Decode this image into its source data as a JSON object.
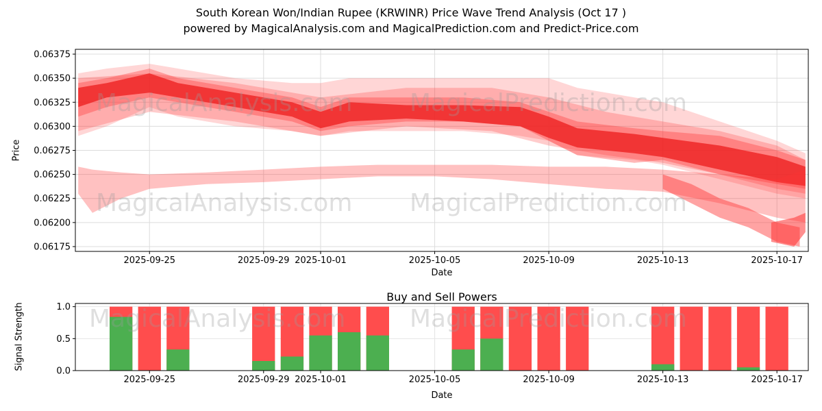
{
  "title_line1": "South Korean Won/Indian Rupee  (KRWINR) Price Wave Trend Analysis (Oct 17 )",
  "title_line2": "powered by MagicalAnalysis.com and MagicalPrediction.com and Predict-Price.com",
  "watermarks": {
    "left": "MagicalAnalysis.com",
    "right": "MagicalPrediction.com",
    "color": "#9a9a9a",
    "opacity": 0.32
  },
  "chart_data": [
    {
      "type": "area",
      "name": "price-wave-trend",
      "ylabel": "Price",
      "xlabel": "Date",
      "base_date": "2025-09-22",
      "xlim_days": [
        0.4,
        26.1
      ],
      "ylim": [
        0.0617,
        0.0638
      ],
      "yticks": [
        0.06175,
        0.062,
        0.06225,
        0.0625,
        0.06275,
        0.063,
        0.06325,
        0.0635,
        0.06375
      ],
      "ytick_decimals": 5,
      "xticks": [
        "2025-09-25",
        "2025-09-29",
        "2025-10-01",
        "2025-10-05",
        "2025-10-09",
        "2025-10-13",
        "2025-10-17"
      ],
      "grid": true,
      "band_color": "#ff3333",
      "bands": [
        {
          "name": "outer-upper-band",
          "opacity": 0.2,
          "points": [
            [
              0.5,
              0.0629,
              0.06355
            ],
            [
              1.5,
              0.063,
              0.0636
            ],
            [
              3.0,
              0.0632,
              0.06365
            ],
            [
              4.0,
              0.0631,
              0.0636
            ],
            [
              6.0,
              0.063,
              0.0635
            ],
            [
              8.0,
              0.06295,
              0.06345
            ],
            [
              9.0,
              0.0629,
              0.06345
            ],
            [
              10.0,
              0.06295,
              0.0635
            ],
            [
              12.0,
              0.06295,
              0.0635
            ],
            [
              14.0,
              0.06295,
              0.0635
            ],
            [
              16.0,
              0.0629,
              0.0635
            ],
            [
              17.0,
              0.06285,
              0.0635
            ],
            [
              18.0,
              0.0627,
              0.0634
            ],
            [
              20.0,
              0.06265,
              0.0633
            ],
            [
              21.0,
              0.0626,
              0.06325
            ],
            [
              23.0,
              0.06245,
              0.06305
            ],
            [
              25.0,
              0.0623,
              0.06285
            ],
            [
              26.0,
              0.06225,
              0.06272
            ]
          ]
        },
        {
          "name": "mid-upper-texture-band",
          "opacity": 0.25,
          "points": [
            [
              0.5,
              0.06295,
              0.0635
            ],
            [
              3.0,
              0.06315,
              0.06355
            ],
            [
              6.0,
              0.06305,
              0.06345
            ],
            [
              9.0,
              0.0629,
              0.0633
            ],
            [
              12.0,
              0.063,
              0.0634
            ],
            [
              15.0,
              0.06295,
              0.0634
            ],
            [
              17.0,
              0.0628,
              0.0633
            ],
            [
              19.0,
              0.0627,
              0.06315
            ],
            [
              21.0,
              0.06262,
              0.06305
            ],
            [
              23.0,
              0.0625,
              0.06295
            ],
            [
              25.0,
              0.06235,
              0.0628
            ],
            [
              26.0,
              0.0623,
              0.06265
            ]
          ]
        },
        {
          "name": "mid-upper-band",
          "opacity": 0.35,
          "points": [
            [
              0.5,
              0.0631,
              0.06345
            ],
            [
              1.5,
              0.0632,
              0.0635
            ],
            [
              3.0,
              0.0633,
              0.0636
            ],
            [
              4.0,
              0.06325,
              0.0635
            ],
            [
              6.0,
              0.06315,
              0.0634
            ],
            [
              8.0,
              0.06305,
              0.0633
            ],
            [
              9.0,
              0.06295,
              0.0632
            ],
            [
              10.0,
              0.063,
              0.0633
            ],
            [
              12.0,
              0.06305,
              0.0633
            ],
            [
              14.0,
              0.06305,
              0.0633
            ],
            [
              16.0,
              0.063,
              0.06325
            ],
            [
              17.0,
              0.06285,
              0.06315
            ],
            [
              18.0,
              0.0627,
              0.06305
            ],
            [
              20.0,
              0.06262,
              0.06298
            ],
            [
              21.0,
              0.06265,
              0.06295
            ],
            [
              23.0,
              0.0625,
              0.0629
            ],
            [
              25.0,
              0.0624,
              0.06275
            ],
            [
              26.0,
              0.06235,
              0.06265
            ]
          ]
        },
        {
          "name": "core-trend-band",
          "opacity": 0.8,
          "color": "#ee2222",
          "points": [
            [
              0.5,
              0.0632,
              0.0634
            ],
            [
              1.5,
              0.0633,
              0.06345
            ],
            [
              3.0,
              0.06335,
              0.06355
            ],
            [
              4.0,
              0.0633,
              0.06345
            ],
            [
              6.0,
              0.0632,
              0.06335
            ],
            [
              8.0,
              0.0631,
              0.06325
            ],
            [
              9.0,
              0.06298,
              0.06315
            ],
            [
              10.0,
              0.06305,
              0.06325
            ],
            [
              12.0,
              0.06308,
              0.06322
            ],
            [
              14.0,
              0.06305,
              0.06322
            ],
            [
              16.0,
              0.063,
              0.0632
            ],
            [
              17.0,
              0.06288,
              0.0631
            ],
            [
              18.0,
              0.06278,
              0.06298
            ],
            [
              20.0,
              0.06272,
              0.06292
            ],
            [
              21.0,
              0.06268,
              0.06288
            ],
            [
              23.0,
              0.06255,
              0.0628
            ],
            [
              25.0,
              0.06242,
              0.06268
            ],
            [
              26.0,
              0.06238,
              0.06258
            ]
          ]
        },
        {
          "name": "lower-band",
          "opacity": 0.3,
          "points": [
            [
              0.5,
              0.0623,
              0.06258
            ],
            [
              1.0,
              0.0621,
              0.06255
            ],
            [
              2.0,
              0.06225,
              0.06252
            ],
            [
              3.0,
              0.06235,
              0.0625
            ],
            [
              5.0,
              0.0624,
              0.06252
            ],
            [
              7.0,
              0.06242,
              0.06255
            ],
            [
              9.0,
              0.06245,
              0.06258
            ],
            [
              11.0,
              0.06248,
              0.0626
            ],
            [
              13.0,
              0.06248,
              0.0626
            ],
            [
              15.0,
              0.06245,
              0.0626
            ],
            [
              17.0,
              0.0624,
              0.06258
            ],
            [
              19.0,
              0.06235,
              0.06258
            ],
            [
              21.0,
              0.06232,
              0.06255
            ],
            [
              23.0,
              0.0622,
              0.0625
            ],
            [
              25.0,
              0.06205,
              0.06245
            ],
            [
              26.0,
              0.062,
              0.06255
            ]
          ]
        },
        {
          "name": "steep-decline-band",
          "opacity": 0.45,
          "points": [
            [
              21.0,
              0.06235,
              0.0625
            ],
            [
              22.0,
              0.0622,
              0.0624
            ],
            [
              23.0,
              0.06205,
              0.06225
            ],
            [
              24.0,
              0.06195,
              0.06215
            ],
            [
              25.0,
              0.0618,
              0.062
            ],
            [
              25.8,
              0.06175,
              0.06195
            ]
          ]
        },
        {
          "name": "end-blob-band",
          "opacity": 0.55,
          "points": [
            [
              24.8,
              0.0618,
              0.062
            ],
            [
              25.6,
              0.06175,
              0.06205
            ],
            [
              26.0,
              0.0619,
              0.0621
            ]
          ]
        }
      ]
    },
    {
      "type": "bar",
      "name": "buy-sell-powers",
      "title": "Buy and Sell Powers",
      "ylabel": "Signal Strength",
      "xlabel": "Date",
      "ylim": [
        0,
        1.05
      ],
      "yticks": [
        0.0,
        0.5,
        1.0
      ],
      "ytick_decimals": 1,
      "xticks": [
        "2025-09-25",
        "2025-09-29",
        "2025-10-01",
        "2025-10-05",
        "2025-10-09",
        "2025-10-13",
        "2025-10-17"
      ],
      "grid": true,
      "bar_width_days": 0.8,
      "sell_color": "#ff4d4d",
      "buy_color": "#4caf50",
      "bars": [
        {
          "date": "2025-09-24",
          "sell": 1.0,
          "buy": 0.84
        },
        {
          "date": "2025-09-25",
          "sell": 1.0,
          "buy": 0.0
        },
        {
          "date": "2025-09-26",
          "sell": 1.0,
          "buy": 0.33
        },
        {
          "date": "2025-09-29",
          "sell": 1.0,
          "buy": 0.15
        },
        {
          "date": "2025-09-30",
          "sell": 1.0,
          "buy": 0.22
        },
        {
          "date": "2025-10-01",
          "sell": 1.0,
          "buy": 0.55
        },
        {
          "date": "2025-10-02",
          "sell": 1.0,
          "buy": 0.6
        },
        {
          "date": "2025-10-03",
          "sell": 1.0,
          "buy": 0.55
        },
        {
          "date": "2025-10-06",
          "sell": 1.0,
          "buy": 0.33
        },
        {
          "date": "2025-10-07",
          "sell": 1.0,
          "buy": 0.5
        },
        {
          "date": "2025-10-08",
          "sell": 1.0,
          "buy": 0.0
        },
        {
          "date": "2025-10-09",
          "sell": 1.0,
          "buy": 0.0
        },
        {
          "date": "2025-10-10",
          "sell": 1.0,
          "buy": 0.0
        },
        {
          "date": "2025-10-13",
          "sell": 1.0,
          "buy": 0.1
        },
        {
          "date": "2025-10-14",
          "sell": 1.0,
          "buy": 0.0
        },
        {
          "date": "2025-10-15",
          "sell": 1.0,
          "buy": 0.0
        },
        {
          "date": "2025-10-16",
          "sell": 1.0,
          "buy": 0.05
        },
        {
          "date": "2025-10-17",
          "sell": 1.0,
          "buy": 0.0
        }
      ]
    }
  ]
}
